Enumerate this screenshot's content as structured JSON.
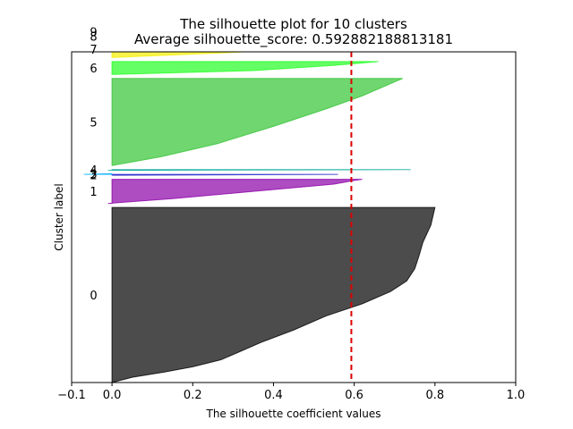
{
  "chart_data": {
    "type": "area",
    "title": "The silhouette plot for 10 clusters",
    "subtitle": "Average silhouette_score: 0.592882188813181",
    "xlabel": "The silhouette coefficient values",
    "ylabel": "Cluster label",
    "xlim": [
      -0.1,
      1.0
    ],
    "ylim": [
      0,
      820
    ],
    "x_ticks": [
      -0.1,
      0.0,
      0.2,
      0.4,
      0.6,
      0.8,
      1.0
    ],
    "x_tick_labels": [
      "−0.1",
      "0.0",
      "0.2",
      "0.4",
      "0.6",
      "0.8",
      "1.0"
    ],
    "average_score": 0.592882188813181,
    "grid": false,
    "legend": "none",
    "series": [
      {
        "label": "0",
        "color": "#000000",
        "y_lower": 0,
        "y_upper": 434,
        "profile": [
          [
            0,
            0.0
          ],
          [
            0.03,
            0.05
          ],
          [
            0.06,
            0.13
          ],
          [
            0.09,
            0.2
          ],
          [
            0.13,
            0.27
          ],
          [
            0.18,
            0.32
          ],
          [
            0.23,
            0.37
          ],
          [
            0.3,
            0.45
          ],
          [
            0.38,
            0.53
          ],
          [
            0.45,
            0.62
          ],
          [
            0.52,
            0.69
          ],
          [
            0.58,
            0.73
          ],
          [
            0.65,
            0.75
          ],
          [
            0.72,
            0.76
          ],
          [
            0.8,
            0.77
          ],
          [
            0.9,
            0.79
          ],
          [
            1,
            0.8
          ]
        ]
      },
      {
        "label": "1",
        "color": "#8c00a8",
        "y_lower": 444,
        "y_upper": 504,
        "profile": [
          [
            0,
            -0.01
          ],
          [
            0.2,
            0.15
          ],
          [
            0.5,
            0.35
          ],
          [
            0.8,
            0.55
          ],
          [
            0.95,
            0.6
          ],
          [
            1,
            0.62
          ]
        ]
      },
      {
        "label": "2",
        "color": "#2020cc",
        "y_lower": 514,
        "y_upper": 516,
        "profile": [
          [
            0,
            0.0
          ],
          [
            1,
            0.56
          ]
        ]
      },
      {
        "label": "3",
        "color": "#00b0ff",
        "y_lower": 516,
        "y_upper": 518,
        "profile": [
          [
            0,
            -0.07
          ],
          [
            1,
            0.0
          ]
        ]
      },
      {
        "label": "4",
        "color": "#00a89a",
        "y_lower": 526,
        "y_upper": 528,
        "profile": [
          [
            0,
            -0.01
          ],
          [
            1,
            0.74
          ]
        ]
      },
      {
        "label": "5",
        "color": "#33c433",
        "y_lower": 538,
        "y_upper": 754,
        "profile": [
          [
            0,
            0.0
          ],
          [
            0.1,
            0.12
          ],
          [
            0.25,
            0.26
          ],
          [
            0.45,
            0.4
          ],
          [
            0.65,
            0.53
          ],
          [
            0.8,
            0.62
          ],
          [
            0.92,
            0.68
          ],
          [
            1,
            0.72
          ]
        ]
      },
      {
        "label": "6",
        "color": "#22ff22",
        "y_lower": 764,
        "y_upper": 796,
        "profile": [
          [
            0,
            0.0
          ],
          [
            0.3,
            0.35
          ],
          [
            0.7,
            0.55
          ],
          [
            1,
            0.66
          ]
        ]
      },
      {
        "label": "7",
        "color": "#f4f000",
        "y_lower": 806,
        "y_upper": 848,
        "profile": [
          [
            0,
            0.0
          ],
          [
            0.3,
            0.3
          ],
          [
            0.7,
            0.6
          ],
          [
            1,
            0.77
          ]
        ]
      },
      {
        "label": "8",
        "color": "#ff9d00",
        "y_lower": 858,
        "y_upper": 859,
        "profile": [
          [
            0,
            0.0
          ],
          [
            1,
            0.51
          ]
        ]
      },
      {
        "label": "9",
        "color": "#cc0000",
        "y_lower": 869,
        "y_upper": 870,
        "profile": [
          [
            0,
            0.0
          ],
          [
            1,
            0.52
          ]
        ]
      }
    ]
  }
}
